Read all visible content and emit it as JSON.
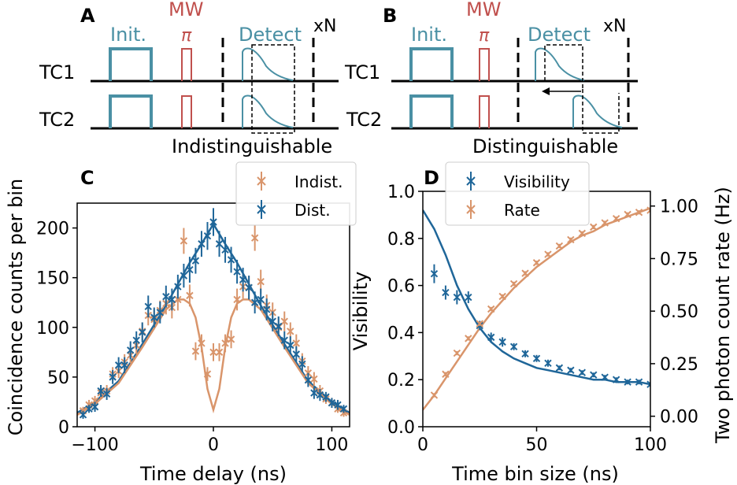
{
  "panels": {
    "A": {
      "letter": "A",
      "mw_label": "MW",
      "init_label": "Init.",
      "pi_label": "π",
      "detect_label": "Detect",
      "repeat_label": "xN",
      "row1_label": "TC1",
      "row2_label": "TC2",
      "caption": "Indistinguishable"
    },
    "B": {
      "letter": "B",
      "mw_label": "MW",
      "init_label": "Init.",
      "pi_label": "π",
      "detect_label": "Detect",
      "repeat_label": "xN",
      "row1_label": "TC1",
      "row2_label": "TC2",
      "caption": "Distinguishable"
    }
  },
  "colors": {
    "teal": "#4a90a4",
    "mw": "#c0504d",
    "blue": "#1f6699",
    "orange": "#d9956b",
    "black": "#000000"
  },
  "chart_data": [
    {
      "id": "C",
      "letter": "C",
      "type": "scatter",
      "xlabel": "Time delay (ns)",
      "ylabel": "Coincidence counts per bin",
      "xlim": [
        -115,
        115
      ],
      "ylim": [
        0,
        225
      ],
      "xticks": [
        -100,
        0,
        100
      ],
      "xtick_labels": [
        "−100",
        "0",
        "100"
      ],
      "yticks": [
        0,
        50,
        100,
        150,
        200
      ],
      "ytick_labels": [
        "0",
        "50",
        "100",
        "150",
        "200"
      ],
      "legend": [
        "Indist.",
        "Dist."
      ],
      "series": [
        {
          "name": "Indist.",
          "color": "#d9956b",
          "x": [
            -110,
            -105,
            -100,
            -95,
            -90,
            -85,
            -80,
            -75,
            -70,
            -65,
            -60,
            -55,
            -50,
            -45,
            -40,
            -35,
            -30,
            -25,
            -20,
            -15,
            -10,
            -5,
            0,
            5,
            10,
            15,
            20,
            25,
            30,
            35,
            40,
            45,
            50,
            55,
            60,
            65,
            70,
            75,
            80,
            85,
            90,
            95,
            100,
            105,
            110
          ],
          "y": [
            16,
            22,
            26,
            34,
            36,
            53,
            56,
            65,
            72,
            82,
            96,
            112,
            108,
            117,
            124,
            120,
            128,
            187,
            132,
            76,
            84,
            53,
            75,
            75,
            84,
            88,
            128,
            141,
            140,
            190,
            146,
            122,
            115,
            100,
            106,
            96,
            84,
            66,
            54,
            48,
            36,
            28,
            24,
            18,
            14
          ],
          "err": [
            4,
            5,
            5,
            6,
            6,
            7,
            7,
            8,
            8,
            9,
            9,
            10,
            10,
            10,
            11,
            11,
            11,
            13,
            11,
            9,
            9,
            7,
            9,
            9,
            9,
            9,
            11,
            12,
            12,
            13,
            12,
            11,
            10,
            10,
            10,
            9,
            9,
            8,
            7,
            7,
            6,
            5,
            5,
            4,
            4
          ]
        },
        {
          "name": "Dist.",
          "color": "#1f6699",
          "x": [
            -110,
            -105,
            -100,
            -95,
            -90,
            -85,
            -80,
            -75,
            -70,
            -65,
            -60,
            -55,
            -50,
            -45,
            -40,
            -35,
            -30,
            -25,
            -20,
            -15,
            -10,
            -5,
            0,
            5,
            10,
            15,
            20,
            25,
            30,
            35,
            40,
            45,
            50,
            55,
            60,
            65,
            70,
            75,
            80,
            85,
            90,
            95,
            100,
            105,
            110
          ],
          "y": [
            12,
            18,
            20,
            36,
            33,
            50,
            62,
            62,
            77,
            87,
            95,
            121,
            110,
            115,
            131,
            128,
            141,
            152,
            158,
            167,
            184,
            192,
            206,
            184,
            178,
            168,
            156,
            148,
            140,
            125,
            128,
            118,
            106,
            101,
            87,
            82,
            73,
            63,
            47,
            34,
            32,
            30,
            24,
            22,
            18
          ],
          "err": [
            4,
            4,
            5,
            6,
            6,
            7,
            8,
            8,
            9,
            9,
            10,
            11,
            10,
            11,
            11,
            11,
            12,
            12,
            13,
            13,
            13,
            14,
            14,
            13,
            13,
            13,
            12,
            12,
            12,
            11,
            11,
            11,
            10,
            10,
            9,
            9,
            8,
            8,
            7,
            6,
            6,
            5,
            5,
            5,
            4
          ]
        }
      ],
      "fits": [
        {
          "name": "Dist. fit",
          "color": "#1f6699",
          "x": [
            -115,
            -100,
            -80,
            -60,
            -40,
            -20,
            -10,
            0,
            10,
            20,
            40,
            60,
            80,
            100,
            115
          ],
          "y": [
            14,
            25,
            46,
            83,
            122,
            165,
            184,
            204,
            184,
            165,
            122,
            83,
            46,
            25,
            14
          ]
        },
        {
          "name": "Indist. fit",
          "color": "#d9956b",
          "x": [
            -115,
            -100,
            -80,
            -60,
            -40,
            -30,
            -25,
            -20,
            -15,
            -10,
            -5,
            0,
            5,
            10,
            15,
            20,
            25,
            30,
            40,
            60,
            80,
            100,
            115
          ],
          "y": [
            12,
            23,
            44,
            80,
            118,
            128,
            128,
            124,
            110,
            80,
            38,
            17,
            38,
            80,
            110,
            124,
            128,
            128,
            118,
            80,
            44,
            23,
            12
          ]
        }
      ]
    },
    {
      "id": "D",
      "letter": "D",
      "type": "scatter",
      "xlabel": "Time bin size (ns)",
      "ylabel": "Visibility",
      "ylabel_right": "Two photon count rate (Hz)",
      "xlim": [
        0,
        100
      ],
      "ylim": [
        0,
        1.0
      ],
      "ylim_right": [
        -0.05,
        1.07
      ],
      "xticks": [
        0,
        50,
        100
      ],
      "xtick_labels": [
        "0",
        "50",
        "100"
      ],
      "yticks": [
        0.0,
        0.2,
        0.4,
        0.6,
        0.8,
        1.0
      ],
      "ytick_labels": [
        "0.0",
        "0.2",
        "0.4",
        "0.6",
        "0.8",
        "1.0"
      ],
      "yticks_right": [
        0.0,
        0.25,
        0.5,
        0.75,
        1.0
      ],
      "ytick_labels_right": [
        "0.00",
        "0.25",
        "0.50",
        "0.75",
        "1.00"
      ],
      "legend": [
        "Visibility",
        "Rate"
      ],
      "series": [
        {
          "name": "Visibility",
          "color": "#1f6699",
          "axis": "left",
          "x": [
            5,
            10,
            15,
            20,
            25,
            30,
            35,
            40,
            45,
            50,
            55,
            60,
            65,
            70,
            75,
            80,
            85,
            90,
            95,
            100
          ],
          "y": [
            0.65,
            0.57,
            0.55,
            0.55,
            0.43,
            0.38,
            0.36,
            0.34,
            0.31,
            0.29,
            0.27,
            0.25,
            0.24,
            0.23,
            0.22,
            0.21,
            0.2,
            0.19,
            0.19,
            0.18
          ],
          "err": [
            0.04,
            0.03,
            0.03,
            0.025,
            0.02,
            0.02,
            0.02,
            0.015,
            0.015,
            0.015,
            0.015,
            0.01,
            0.01,
            0.01,
            0.01,
            0.01,
            0.01,
            0.01,
            0.01,
            0.01
          ]
        },
        {
          "name": "Rate",
          "color": "#d9956b",
          "axis": "right",
          "x": [
            5,
            10,
            15,
            20,
            25,
            30,
            35,
            40,
            45,
            50,
            55,
            60,
            65,
            70,
            75,
            80,
            85,
            90,
            95,
            100
          ],
          "y": [
            0.1,
            0.2,
            0.3,
            0.37,
            0.44,
            0.51,
            0.57,
            0.63,
            0.68,
            0.73,
            0.77,
            0.81,
            0.84,
            0.87,
            0.9,
            0.92,
            0.94,
            0.96,
            0.97,
            0.98
          ],
          "err": [
            0.01,
            0.01,
            0.01,
            0.01,
            0.01,
            0.01,
            0.01,
            0.01,
            0.01,
            0.01,
            0.01,
            0.01,
            0.01,
            0.01,
            0.01,
            0.01,
            0.01,
            0.01,
            0.01,
            0.01
          ]
        }
      ],
      "fits": [
        {
          "name": "Visibility fit",
          "color": "#1f6699",
          "axis": "left",
          "x": [
            0,
            5,
            10,
            15,
            20,
            25,
            30,
            35,
            40,
            45,
            50,
            55,
            60,
            65,
            70,
            75,
            80,
            85,
            90,
            95,
            100
          ],
          "y": [
            0.92,
            0.84,
            0.73,
            0.6,
            0.5,
            0.42,
            0.36,
            0.32,
            0.29,
            0.27,
            0.25,
            0.24,
            0.23,
            0.22,
            0.21,
            0.2,
            0.2,
            0.19,
            0.19,
            0.19,
            0.18
          ]
        },
        {
          "name": "Rate fit",
          "color": "#d9956b",
          "axis": "right",
          "x": [
            0,
            5,
            10,
            15,
            20,
            25,
            30,
            35,
            40,
            45,
            50,
            55,
            60,
            65,
            70,
            75,
            80,
            85,
            90,
            95,
            100
          ],
          "y": [
            0.03,
            0.1,
            0.18,
            0.26,
            0.34,
            0.42,
            0.49,
            0.55,
            0.61,
            0.66,
            0.71,
            0.75,
            0.79,
            0.83,
            0.86,
            0.88,
            0.91,
            0.93,
            0.95,
            0.97,
            0.99
          ]
        }
      ]
    }
  ]
}
